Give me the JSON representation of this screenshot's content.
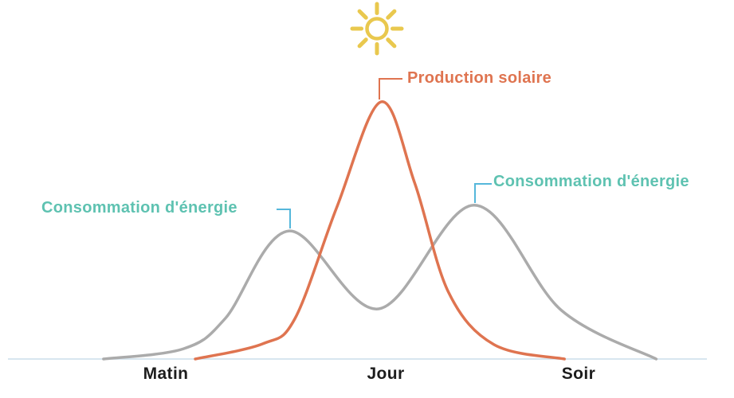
{
  "colors": {
    "solar": "#DF7450",
    "consumption": "#ABABAB",
    "consumption_label": "#5EC2B1",
    "label_connector": "#55B7DB",
    "sun": "#E9C84E",
    "baseline": "#D8E6EF",
    "axis_label": "#1D1D1D"
  },
  "annotations": {
    "solar": "Production solaire",
    "consumption_left": "Consommation d'énergie",
    "consumption_right": "Consommation d'énergie"
  },
  "icons": {
    "sun": "sun-icon"
  },
  "chart_data": {
    "type": "line",
    "title": "",
    "x_unit": "percent of day width (Matin -> Soir)",
    "y_unit": "percent of solar peak",
    "x_tick_labels": [
      "Matin",
      "Jour",
      "Soir"
    ],
    "x_tick_positions_pct": [
      22.6,
      52.6,
      78.8
    ],
    "grid": false,
    "legend_position": "inline annotations with leader lines",
    "series": [
      {
        "name": "Consommation d'énergie",
        "color": "#ABABAB",
        "shape": "bimodal (morning and evening peaks)",
        "points": [
          [
            14.1,
            0
          ],
          [
            25.0,
            4.0
          ],
          [
            30.7,
            15.8
          ],
          [
            39.4,
            49.8
          ],
          [
            51.6,
            19.5
          ],
          [
            64.6,
            59.8
          ],
          [
            76.5,
            18.9
          ],
          [
            89.4,
            0
          ]
        ]
      },
      {
        "name": "Production solaire",
        "color": "#DF7450",
        "shape": "single midday peak",
        "points": [
          [
            26.6,
            0
          ],
          [
            35.8,
            5.9
          ],
          [
            40.2,
            15.8
          ],
          [
            45.9,
            59.1
          ],
          [
            51.9,
            100
          ],
          [
            56.5,
            68.4
          ],
          [
            61.1,
            26.0
          ],
          [
            67.3,
            5.6
          ],
          [
            76.9,
            0
          ]
        ]
      }
    ]
  }
}
